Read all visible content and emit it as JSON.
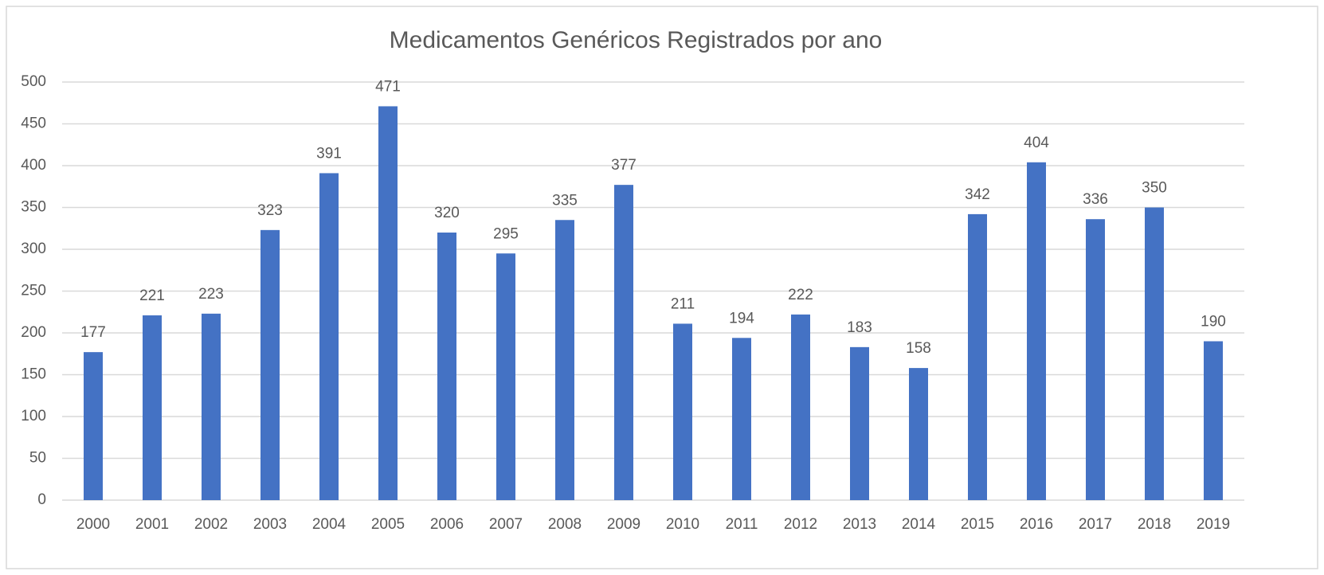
{
  "chart_data": {
    "type": "bar",
    "title": "Medicamentos Genéricos Registrados por ano",
    "categories": [
      "2000",
      "2001",
      "2002",
      "2003",
      "2004",
      "2005",
      "2006",
      "2007",
      "2008",
      "2009",
      "2010",
      "2011",
      "2012",
      "2013",
      "2014",
      "2015",
      "2016",
      "2017",
      "2018",
      "2019"
    ],
    "values": [
      177,
      221,
      223,
      323,
      391,
      471,
      320,
      295,
      335,
      377,
      211,
      194,
      222,
      183,
      158,
      342,
      404,
      336,
      350,
      190
    ],
    "color": "#4472c4",
    "ylim": [
      0,
      500
    ],
    "yticks": [
      0,
      50,
      100,
      150,
      200,
      250,
      300,
      350,
      400,
      450,
      500
    ],
    "grid": true
  }
}
